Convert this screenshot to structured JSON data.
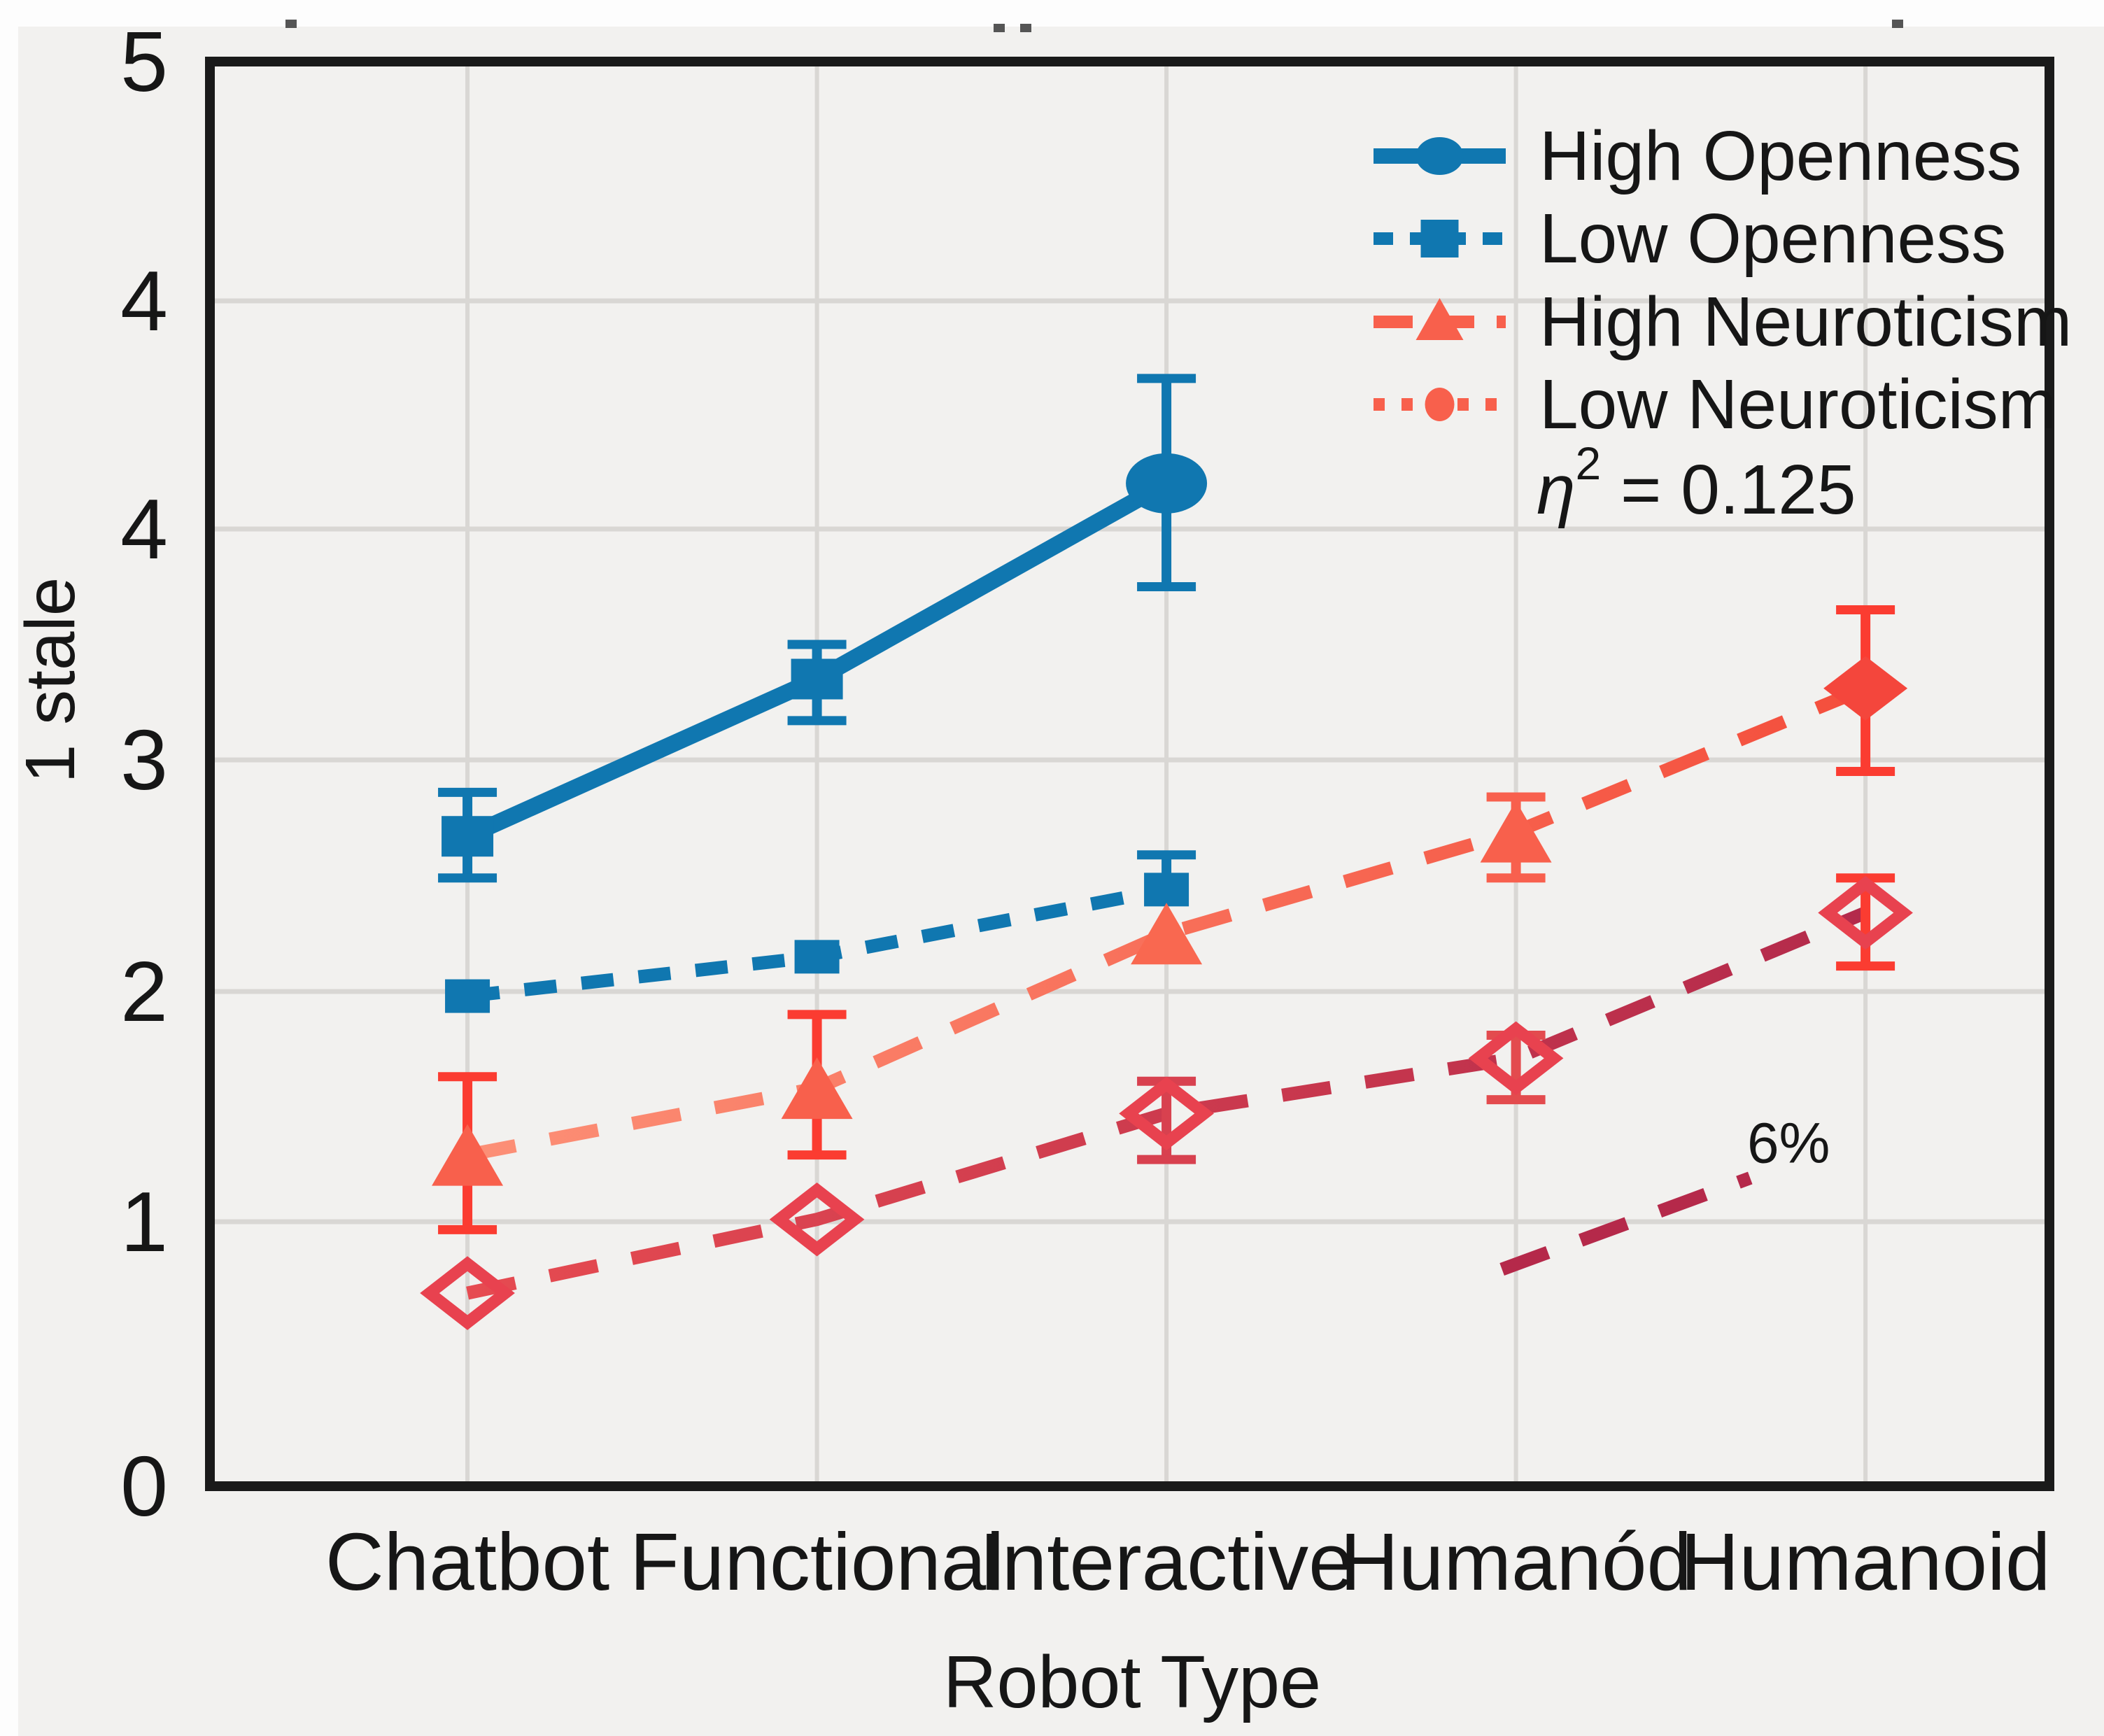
{
  "figure": {
    "y_ticks": [
      "5",
      "4",
      "4",
      "3",
      "2",
      "1",
      "0"
    ],
    "background": "#f2f1ef",
    "grid_color": "#d9d7d4",
    "border_color": "#1a1a1a",
    "text_color": "#161616"
  },
  "legend": {
    "items": [
      {
        "label": "High Openness",
        "color": "#1077b0",
        "line": "solid",
        "marker": "circle"
      },
      {
        "label": "Low Openness",
        "color": "#1077b0",
        "line": "dash-short",
        "marker": "square"
      },
      {
        "label": "High Neuroticism",
        "color": "#f8604c",
        "line": "dash-long",
        "marker": "triangle"
      },
      {
        "label": "Low Neuroticism",
        "color": "#f8604c",
        "line": "dotted",
        "marker": "dot"
      }
    ],
    "eta": {
      "symbol": "η",
      "sup": "2",
      "rest": " = 0.125",
      "plain": "η² = 0.125"
    }
  },
  "chart_data": {
    "type": "line",
    "title": "",
    "xlabel": "Robot Type",
    "ylabel": "1 stale",
    "categories": [
      "Chatbot",
      "Functional",
      "Interactive",
      "Humanód",
      "Humanoid"
    ],
    "y_axis": {
      "ticklabels_bottom_to_top": [
        "0",
        "1",
        "2",
        "3",
        "4",
        "4",
        "5"
      ],
      "note": "tick labels exactly as printed in the figure; the label 4 appears twice on evenly spaced gridlines",
      "ylim_grid_units": [
        0,
        6
      ],
      "grid": true,
      "legend_position": "upper right"
    },
    "series": [
      {
        "name": "High Openness",
        "line_style": "solid",
        "color": "#1077b0",
        "x": [
          0,
          1,
          2
        ],
        "values": [
          2.67,
          3.35,
          4.2
        ],
        "err_lo": [
          2.49,
          3.17,
          3.75
        ],
        "err_hi": [
          2.86,
          3.5,
          4.66
        ],
        "point_markers": [
          "square",
          "square",
          "circle"
        ]
      },
      {
        "name": "Low Openness",
        "line_style": "dash-short",
        "color": "#1077b0",
        "x": [
          0,
          1,
          2
        ],
        "values": [
          1.98,
          2.15,
          2.44
        ],
        "err_lo": [
          null,
          null,
          null
        ],
        "err_hi": [
          null,
          null,
          2.59
        ],
        "point_markers": [
          "square",
          "square",
          "square"
        ]
      },
      {
        "name": "High Neuroticism",
        "line_style": "dash-long",
        "color_start": "#fc9077",
        "color_end": "#f44e3c",
        "marker_color": "#f8604c",
        "x": [
          0,
          1,
          2,
          3,
          4
        ],
        "values": [
          1.29,
          1.58,
          2.25,
          2.69,
          3.31
        ],
        "err_lo": [
          0.97,
          1.29,
          null,
          2.49,
          2.95
        ],
        "err_hi": [
          1.63,
          1.9,
          null,
          2.84,
          3.65
        ],
        "err_colors": [
          "#fb3c31",
          "#fb3c31",
          null,
          "#f8604e",
          "#fb3c31"
        ],
        "point_markers": [
          "triangle",
          "triangle",
          "triangle",
          "triangle",
          "diamond"
        ],
        "marker_colors": [
          "#f8604c",
          "#f8604c",
          "#f96850",
          "#f8604c",
          "#f4463c"
        ]
      },
      {
        "name": "Low Neuroticism",
        "line_style": "dash-long",
        "color_start": "#e64b51",
        "color_end": "#b32a4b",
        "marker_color": "#e8424f",
        "x": [
          0,
          1,
          2,
          3,
          4
        ],
        "values": [
          0.73,
          1.01,
          1.47,
          1.71,
          2.34
        ],
        "err_lo": [
          null,
          null,
          1.27,
          1.53,
          2.11
        ],
        "err_hi": [
          null,
          null,
          1.61,
          1.81,
          2.49
        ],
        "err_colors": [
          null,
          null,
          "#d8414f",
          "#e34b4e",
          "#fb3c31"
        ],
        "point_markers": [
          "diamond-open",
          "diamond-open",
          "diamond-open",
          "diamond-open",
          "diamond-open"
        ]
      },
      {
        "name": "effect-segment",
        "line_style": "dash-long",
        "color": "#b5294a",
        "x": [
          2.96,
          3.67
        ],
        "values": [
          0.82,
          1.19
        ],
        "err_lo": [
          null,
          null
        ],
        "err_hi": [
          null,
          null
        ],
        "point_markers": [
          null,
          null
        ]
      }
    ],
    "annotations": [
      {
        "text": "6%",
        "x": 3.78,
        "v": 1.34
      }
    ],
    "legend_entries": [
      "High Openness",
      "Low Openness",
      "High Neuroticism",
      "Low Neuroticism"
    ],
    "legend_extra": "η² = 0.125"
  }
}
